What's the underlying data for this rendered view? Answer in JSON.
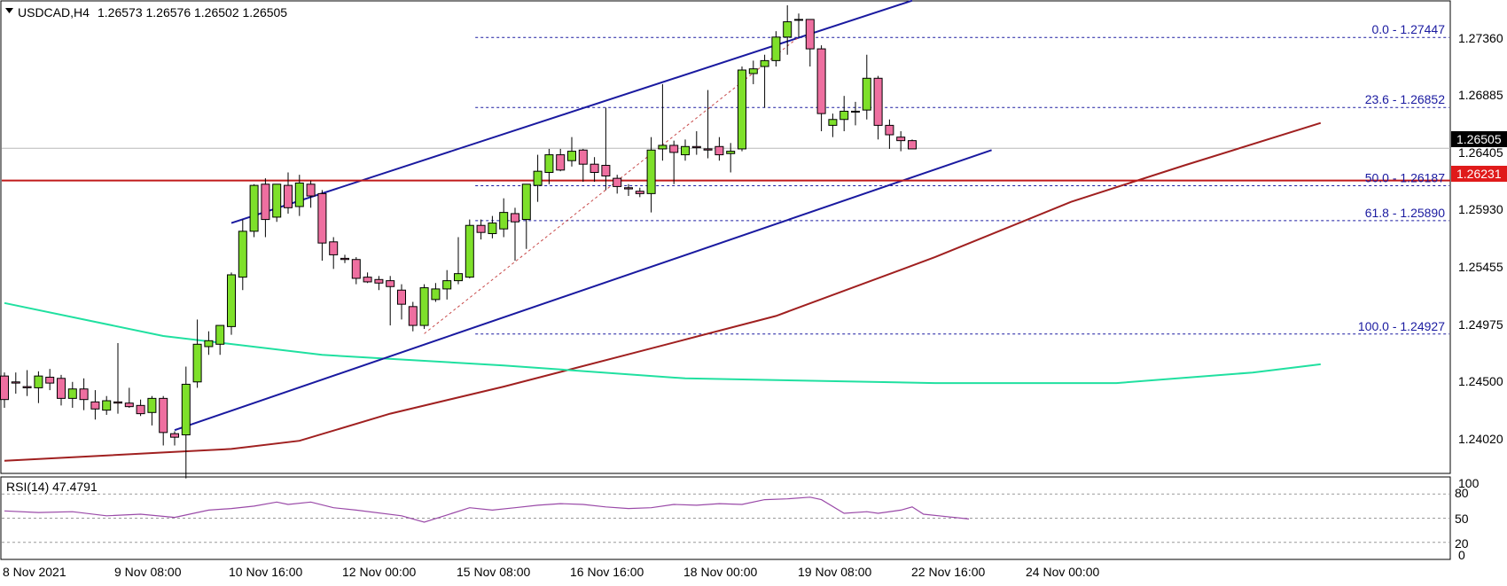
{
  "header": {
    "symbol": "USDCAD,H4",
    "ohlc": "1.26573 1.26576 1.26502 1.26505"
  },
  "rsi_header": "RSI(14) 47.4791",
  "price_axis": {
    "labels": [
      "1.27360",
      "1.26885",
      "1.26405",
      "1.25930",
      "1.25455",
      "1.24975",
      "1.24500",
      "1.24020"
    ],
    "current_price": "1.26505",
    "level_price": "1.26231"
  },
  "rsi_axis": {
    "labels": [
      "100",
      "80",
      "50",
      "20",
      "0"
    ]
  },
  "time_axis": {
    "labels": [
      "8 Nov 2021",
      "9 Nov 08:00",
      "10 Nov 16:00",
      "12 Nov 00:00",
      "15 Nov 08:00",
      "16 Nov 16:00",
      "18 Nov 00:00",
      "19 Nov 08:00",
      "22 Nov 16:00",
      "24 Nov 00:00"
    ]
  },
  "fib_levels": [
    {
      "label": "0.0 - 1.27447",
      "price": 1.27447
    },
    {
      "label": "23.6 - 1.26852",
      "price": 1.26852
    },
    {
      "label": "50.0 - 1.26187",
      "price": 1.26187
    },
    {
      "label": "61.8 - 1.25890",
      "price": 1.2589
    },
    {
      "label": "100.0 - 1.24927",
      "price": 1.24927
    }
  ],
  "colors": {
    "bull": "#7ee02a",
    "bear": "#ee6fa0",
    "channel": "#1a1aa0",
    "support": "#c01a1a",
    "ma_red": "#a02020",
    "ma_green": "#20e0a0",
    "rsi": "#9a4aa8",
    "fib": "#1a1aa0"
  },
  "chart_data": {
    "type": "candlestick",
    "symbol": "USDCAD",
    "timeframe": "H4",
    "ylim": [
      1.2375,
      1.2775
    ],
    "candles": [
      {
        "o": 1.2457,
        "h": 1.246,
        "l": 1.243,
        "c": 1.2437
      },
      {
        "o": 1.2452,
        "h": 1.246,
        "l": 1.2442,
        "c": 1.2451
      },
      {
        "o": 1.2448,
        "h": 1.2462,
        "l": 1.244,
        "c": 1.2447
      },
      {
        "o": 1.2447,
        "h": 1.2461,
        "l": 1.2434,
        "c": 1.2457
      },
      {
        "o": 1.2456,
        "h": 1.2463,
        "l": 1.2445,
        "c": 1.2451
      },
      {
        "o": 1.2455,
        "h": 1.2458,
        "l": 1.2432,
        "c": 1.2438
      },
      {
        "o": 1.2438,
        "h": 1.2452,
        "l": 1.243,
        "c": 1.2446
      },
      {
        "o": 1.2446,
        "h": 1.2455,
        "l": 1.2428,
        "c": 1.2437
      },
      {
        "o": 1.2435,
        "h": 1.2445,
        "l": 1.242,
        "c": 1.2429
      },
      {
        "o": 1.2428,
        "h": 1.244,
        "l": 1.2424,
        "c": 1.2436
      },
      {
        "o": 1.2435,
        "h": 1.2485,
        "l": 1.2425,
        "c": 1.2434
      },
      {
        "o": 1.2434,
        "h": 1.2447,
        "l": 1.243,
        "c": 1.2431
      },
      {
        "o": 1.2432,
        "h": 1.2437,
        "l": 1.2423,
        "c": 1.2425
      },
      {
        "o": 1.2426,
        "h": 1.244,
        "l": 1.2415,
        "c": 1.2438
      },
      {
        "o": 1.2438,
        "h": 1.244,
        "l": 1.2398,
        "c": 1.2409
      },
      {
        "o": 1.2408,
        "h": 1.241,
        "l": 1.2398,
        "c": 1.2405
      },
      {
        "o": 1.2407,
        "h": 1.2465,
        "l": 1.237,
        "c": 1.245
      },
      {
        "o": 1.2452,
        "h": 1.2505,
        "l": 1.2447,
        "c": 1.2484
      },
      {
        "o": 1.2482,
        "h": 1.2495,
        "l": 1.2475,
        "c": 1.2487
      },
      {
        "o": 1.2484,
        "h": 1.25,
        "l": 1.2475,
        "c": 1.25
      },
      {
        "o": 1.2499,
        "h": 1.2545,
        "l": 1.2492,
        "c": 1.2543
      },
      {
        "o": 1.2541,
        "h": 1.259,
        "l": 1.253,
        "c": 1.258
      },
      {
        "o": 1.258,
        "h": 1.262,
        "l": 1.2575,
        "c": 1.2619
      },
      {
        "o": 1.262,
        "h": 1.2625,
        "l": 1.2575,
        "c": 1.259
      },
      {
        "o": 1.2592,
        "h": 1.262,
        "l": 1.2588,
        "c": 1.262
      },
      {
        "o": 1.2619,
        "h": 1.263,
        "l": 1.2595,
        "c": 1.26
      },
      {
        "o": 1.2601,
        "h": 1.2628,
        "l": 1.2593,
        "c": 1.2621
      },
      {
        "o": 1.262,
        "h": 1.2623,
        "l": 1.26,
        "c": 1.261
      },
      {
        "o": 1.2612,
        "h": 1.2615,
        "l": 1.2555,
        "c": 1.257
      },
      {
        "o": 1.2571,
        "h": 1.2575,
        "l": 1.2548,
        "c": 1.256
      },
      {
        "o": 1.2557,
        "h": 1.256,
        "l": 1.2553,
        "c": 1.2556
      },
      {
        "o": 1.2556,
        "h": 1.2558,
        "l": 1.2535,
        "c": 1.254
      },
      {
        "o": 1.2541,
        "h": 1.2545,
        "l": 1.2536,
        "c": 1.2537
      },
      {
        "o": 1.2539,
        "h": 1.2542,
        "l": 1.253,
        "c": 1.2536
      },
      {
        "o": 1.2538,
        "h": 1.2542,
        "l": 1.25,
        "c": 1.2533
      },
      {
        "o": 1.253,
        "h": 1.2535,
        "l": 1.2505,
        "c": 1.2518
      },
      {
        "o": 1.2516,
        "h": 1.252,
        "l": 1.2495,
        "c": 1.25
      },
      {
        "o": 1.25,
        "h": 1.2535,
        "l": 1.2497,
        "c": 1.2532
      },
      {
        "o": 1.2522,
        "h": 1.2536,
        "l": 1.252,
        "c": 1.2531
      },
      {
        "o": 1.2531,
        "h": 1.2547,
        "l": 1.2522,
        "c": 1.2538
      },
      {
        "o": 1.2538,
        "h": 1.2575,
        "l": 1.2535,
        "c": 1.2544
      },
      {
        "o": 1.2541,
        "h": 1.259,
        "l": 1.254,
        "c": 1.2585
      },
      {
        "o": 1.2585,
        "h": 1.259,
        "l": 1.2573,
        "c": 1.2579
      },
      {
        "o": 1.2578,
        "h": 1.2593,
        "l": 1.2574,
        "c": 1.2587
      },
      {
        "o": 1.2582,
        "h": 1.2608,
        "l": 1.2575,
        "c": 1.2596
      },
      {
        "o": 1.2595,
        "h": 1.26,
        "l": 1.2555,
        "c": 1.2588
      },
      {
        "o": 1.259,
        "h": 1.262,
        "l": 1.2565,
        "c": 1.262
      },
      {
        "o": 1.2619,
        "h": 1.2645,
        "l": 1.2605,
        "c": 1.2631
      },
      {
        "o": 1.263,
        "h": 1.265,
        "l": 1.262,
        "c": 1.2645
      },
      {
        "o": 1.2645,
        "h": 1.265,
        "l": 1.2631,
        "c": 1.2632
      },
      {
        "o": 1.264,
        "h": 1.266,
        "l": 1.2635,
        "c": 1.2648
      },
      {
        "o": 1.2649,
        "h": 1.265,
        "l": 1.2622,
        "c": 1.2637
      },
      {
        "o": 1.2637,
        "h": 1.2643,
        "l": 1.2622,
        "c": 1.263
      },
      {
        "o": 1.2636,
        "h": 1.2685,
        "l": 1.2615,
        "c": 1.2627
      },
      {
        "o": 1.2625,
        "h": 1.2628,
        "l": 1.2612,
        "c": 1.2618
      },
      {
        "o": 1.2617,
        "h": 1.262,
        "l": 1.261,
        "c": 1.2616
      },
      {
        "o": 1.2614,
        "h": 1.2617,
        "l": 1.2609,
        "c": 1.2612
      },
      {
        "o": 1.2612,
        "h": 1.266,
        "l": 1.2596,
        "c": 1.2649
      },
      {
        "o": 1.265,
        "h": 1.2705,
        "l": 1.264,
        "c": 1.2653
      },
      {
        "o": 1.2653,
        "h": 1.2657,
        "l": 1.262,
        "c": 1.2647
      },
      {
        "o": 1.2645,
        "h": 1.2658,
        "l": 1.264,
        "c": 1.2652
      },
      {
        "o": 1.2652,
        "h": 1.2665,
        "l": 1.2645,
        "c": 1.2651
      },
      {
        "o": 1.265,
        "h": 1.27,
        "l": 1.2642,
        "c": 1.2649
      },
      {
        "o": 1.2652,
        "h": 1.266,
        "l": 1.264,
        "c": 1.2645
      },
      {
        "o": 1.2646,
        "h": 1.2655,
        "l": 1.263,
        "c": 1.2648
      },
      {
        "o": 1.265,
        "h": 1.272,
        "l": 1.2648,
        "c": 1.2717
      },
      {
        "o": 1.2714,
        "h": 1.2725,
        "l": 1.2705,
        "c": 1.2718
      },
      {
        "o": 1.272,
        "h": 1.273,
        "l": 1.2685,
        "c": 1.2725
      },
      {
        "o": 1.2725,
        "h": 1.275,
        "l": 1.272,
        "c": 1.2745
      },
      {
        "o": 1.2745,
        "h": 1.2772,
        "l": 1.273,
        "c": 1.2758
      },
      {
        "o": 1.276,
        "h": 1.2765,
        "l": 1.2745,
        "c": 1.276
      },
      {
        "o": 1.276,
        "h": 1.276,
        "l": 1.272,
        "c": 1.2735
      },
      {
        "o": 1.2735,
        "h": 1.2738,
        "l": 1.2665,
        "c": 1.268
      },
      {
        "o": 1.267,
        "h": 1.268,
        "l": 1.266,
        "c": 1.2675
      },
      {
        "o": 1.2675,
        "h": 1.2695,
        "l": 1.2665,
        "c": 1.2682
      },
      {
        "o": 1.2682,
        "h": 1.269,
        "l": 1.267,
        "c": 1.2682
      },
      {
        "o": 1.2683,
        "h": 1.273,
        "l": 1.2675,
        "c": 1.271
      },
      {
        "o": 1.271,
        "h": 1.2712,
        "l": 1.2658,
        "c": 1.267
      },
      {
        "o": 1.267,
        "h": 1.2675,
        "l": 1.265,
        "c": 1.2662
      },
      {
        "o": 1.266,
        "h": 1.2665,
        "l": 1.2648,
        "c": 1.2657
      },
      {
        "o": 1.2657,
        "h": 1.2658,
        "l": 1.265,
        "c": 1.265
      }
    ],
    "moving_averages": [
      {
        "name": "",
        "color": "#a02020",
        "points": [
          [
            0,
            1.2385
          ],
          [
            14,
            1.2392
          ],
          [
            20,
            1.2395
          ],
          [
            26,
            1.2402
          ],
          [
            34,
            1.2425
          ],
          [
            44,
            1.2448
          ],
          [
            56,
            1.2478
          ],
          [
            68,
            1.2508
          ],
          [
            82,
            1.2558
          ],
          [
            94,
            1.2605
          ],
          [
            104,
            1.2636
          ],
          [
            116,
            1.2672
          ]
        ]
      },
      {
        "name": "",
        "color": "#20e0a0",
        "points": [
          [
            0,
            1.2519
          ],
          [
            14,
            1.2491
          ],
          [
            28,
            1.2475
          ],
          [
            44,
            1.2466
          ],
          [
            60,
            1.2455
          ],
          [
            82,
            1.2451
          ],
          [
            98,
            1.2451
          ],
          [
            110,
            1.246
          ],
          [
            116,
            1.2467
          ]
        ]
      }
    ],
    "trend_lines": [
      {
        "name": "channel-upper",
        "from": [
          20,
          1.2587
        ],
        "to": [
          80,
          1.2776
        ]
      },
      {
        "name": "channel-lower",
        "from": [
          15,
          1.2411
        ],
        "to": [
          87,
          1.2649
        ]
      },
      {
        "name": "fib-swing",
        "from": [
          37,
          1.2493
        ],
        "to": [
          70,
          1.2745
        ],
        "dashed": true
      }
    ],
    "support_level": 1.26231,
    "current_price": 1.26505,
    "rsi": {
      "period": 14,
      "value": 47.4791,
      "ylim": [
        0,
        100
      ],
      "levels": [
        80,
        50,
        20
      ],
      "points": [
        [
          0,
          59
        ],
        [
          3,
          57
        ],
        [
          6,
          58
        ],
        [
          9,
          53
        ],
        [
          12,
          55
        ],
        [
          15,
          51
        ],
        [
          18,
          60
        ],
        [
          20,
          62
        ],
        [
          22,
          65
        ],
        [
          24,
          70
        ],
        [
          25,
          67
        ],
        [
          27,
          70
        ],
        [
          29,
          63
        ],
        [
          31,
          60
        ],
        [
          35,
          53
        ],
        [
          37,
          45
        ],
        [
          39,
          54
        ],
        [
          41,
          63
        ],
        [
          43,
          60
        ],
        [
          45,
          63
        ],
        [
          47,
          66
        ],
        [
          49,
          68
        ],
        [
          51,
          67
        ],
        [
          53,
          64
        ],
        [
          55,
          62
        ],
        [
          57,
          63
        ],
        [
          59,
          67
        ],
        [
          61,
          66
        ],
        [
          63,
          68
        ],
        [
          65,
          67
        ],
        [
          67,
          73
        ],
        [
          69,
          74
        ],
        [
          71,
          76
        ],
        [
          72,
          73
        ],
        [
          74,
          56
        ],
        [
          76,
          58
        ],
        [
          77,
          56
        ],
        [
          79,
          60
        ],
        [
          80,
          64
        ],
        [
          81,
          55
        ],
        [
          83,
          52
        ],
        [
          85,
          49
        ]
      ]
    }
  }
}
